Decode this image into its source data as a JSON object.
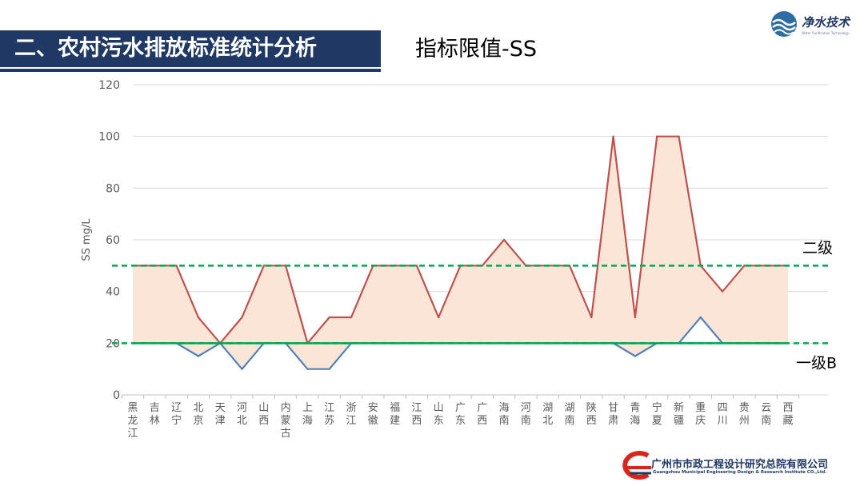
{
  "header": {
    "section_title": "二、农村污水排放标准统计分析",
    "subtitle": "指标限值-SS"
  },
  "logo": {
    "wordmark": "净水技术",
    "tagline": "Water Purification Technology"
  },
  "footer": {
    "org_name": "广州市市政工程设计研究总院有限公司",
    "org_name_en": "Guangzhou Municipal Engineering Design & Research Institute CO.,Ltd."
  },
  "colors": {
    "title_bg": "#1f3864",
    "upper_line": "#c0504d",
    "lower_line": "#4f81bd",
    "band_fill": "#fbe5d6",
    "threshold": "#00a651"
  },
  "chart_data": {
    "type": "line",
    "title": "",
    "xlabel": "",
    "ylabel": "SS mg/L",
    "ylim": [
      0,
      120
    ],
    "yticks": [
      0,
      20,
      40,
      60,
      80,
      100,
      120
    ],
    "grid": true,
    "categories": [
      "黑龙江",
      "吉林",
      "辽宁",
      "北京",
      "天津",
      "河北",
      "山西",
      "内蒙古",
      "上海",
      "江苏",
      "浙江",
      "安徽",
      "福建",
      "江西",
      "山东",
      "广东",
      "广西",
      "海南",
      "河南",
      "湖北",
      "湖南",
      "陕西",
      "甘肃",
      "青海",
      "宁夏",
      "新疆",
      "重庆",
      "四川",
      "贵州",
      "云南",
      "西藏"
    ],
    "series": [
      {
        "key": "upper",
        "values": [
          50,
          50,
          50,
          30,
          20,
          30,
          50,
          50,
          20,
          30,
          30,
          50,
          50,
          50,
          30,
          50,
          50,
          60,
          50,
          50,
          50,
          30,
          100,
          30,
          100,
          100,
          50,
          40,
          50,
          50,
          50
        ]
      },
      {
        "key": "lower",
        "values": [
          20,
          20,
          20,
          15,
          20,
          10,
          20,
          20,
          10,
          10,
          20,
          20,
          20,
          20,
          20,
          20,
          20,
          20,
          20,
          20,
          20,
          20,
          20,
          15,
          20,
          20,
          30,
          20,
          20,
          20,
          20
        ]
      }
    ],
    "reference_lines": [
      {
        "label": "二级",
        "value": 50
      },
      {
        "label": "一级B",
        "value": 20
      }
    ]
  }
}
